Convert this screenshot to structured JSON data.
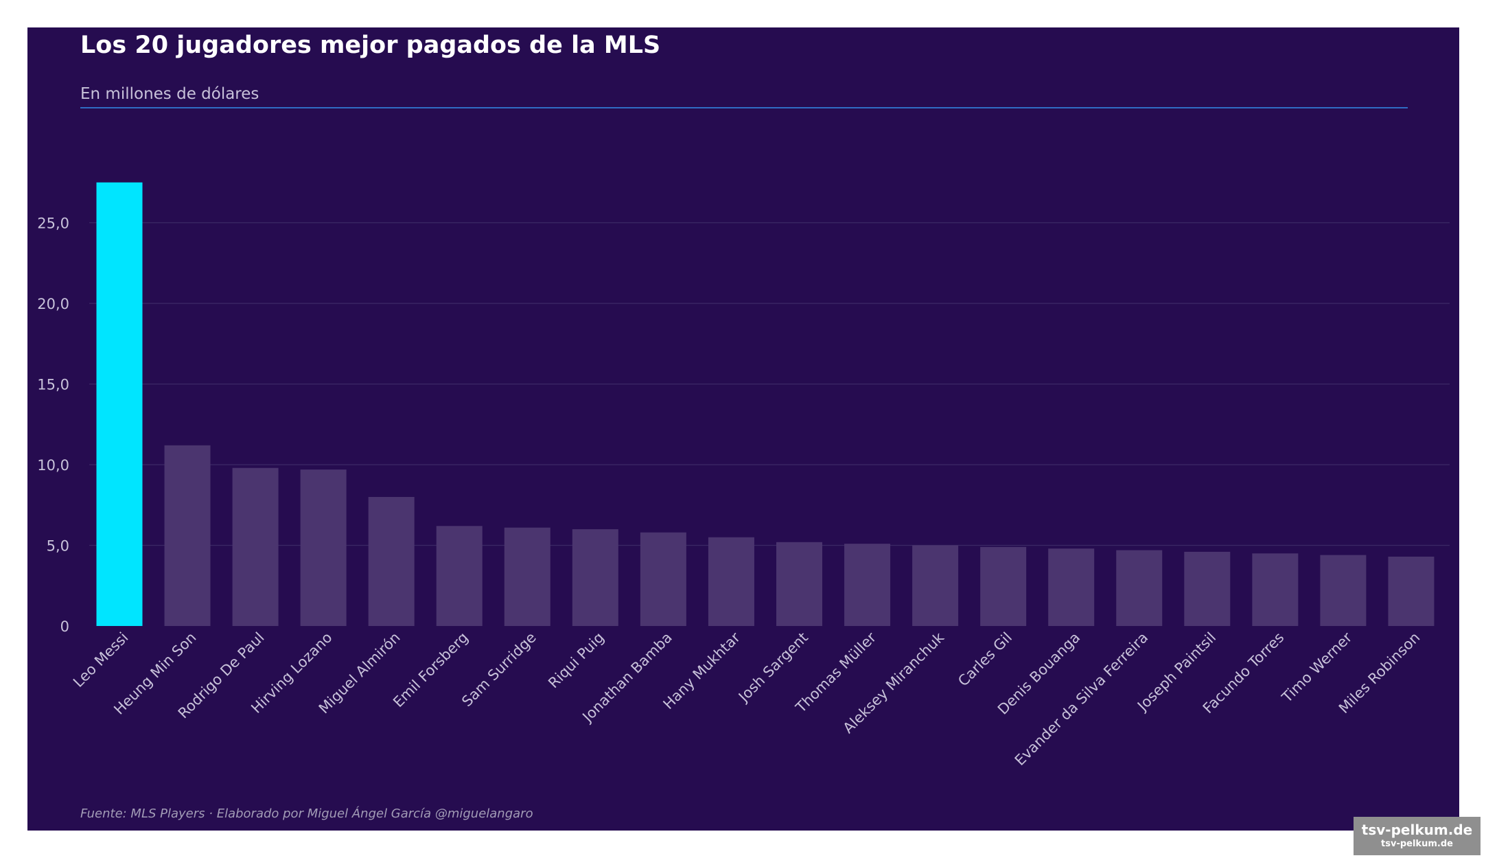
{
  "colors": {
    "background": "#260c50",
    "highlight_bar": "#00e5ff",
    "other_bar": "#4b356f",
    "grid": "#3c2866",
    "text": "#c8c2da",
    "title": "#ffffff",
    "rule": "#2f6cc4"
  },
  "header": {
    "title": "Los 20 jugadores mejor pagados de la MLS",
    "subtitle": "En millones de dólares"
  },
  "footer": {
    "source": "Fuente: MLS Players  ·  Elaborado por Miguel Ángel García @miguelangaro"
  },
  "watermark": {
    "main": "tsv-pelkum.de",
    "sub": "tsv-pelkum.de"
  },
  "chart_data": {
    "type": "bar",
    "title": "Los 20 jugadores mejor pagados de la MLS",
    "subtitle": "En millones de dólares",
    "categories": [
      "Leo Messi",
      "Heung Min Son",
      "Rodrigo De Paul",
      "Hirving Lozano",
      "Miguel Almirón",
      "Emil Forsberg",
      "Sam Surridge",
      "Riqui Puig",
      "Jonathan Bamba",
      "Hany Mukhtar",
      "Josh Sargent",
      "Thomas Müller",
      "Aleksey Miranchuk",
      "Carles Gil",
      "Denis Bouanga",
      "Evander da Silva Ferreira",
      "Joseph Paintsil",
      "Facundo Torres",
      "Timo Werner",
      "Miles Robinson"
    ],
    "values": [
      27.5,
      11.2,
      9.8,
      9.7,
      8.0,
      6.2,
      6.1,
      6.0,
      5.8,
      5.5,
      5.2,
      5.1,
      5.0,
      4.9,
      4.8,
      4.7,
      4.6,
      4.5,
      4.4,
      4.3
    ],
    "highlight": [
      "Leo Messi"
    ],
    "ylim": [
      0,
      30
    ],
    "yticks": [
      0,
      5,
      10,
      15,
      20,
      25
    ],
    "ytick_labels": [
      "0",
      "5,0",
      "10,0",
      "15,0",
      "20,0",
      "25,0"
    ],
    "grid": true,
    "legend": "none",
    "xlabel": "",
    "ylabel": ""
  }
}
